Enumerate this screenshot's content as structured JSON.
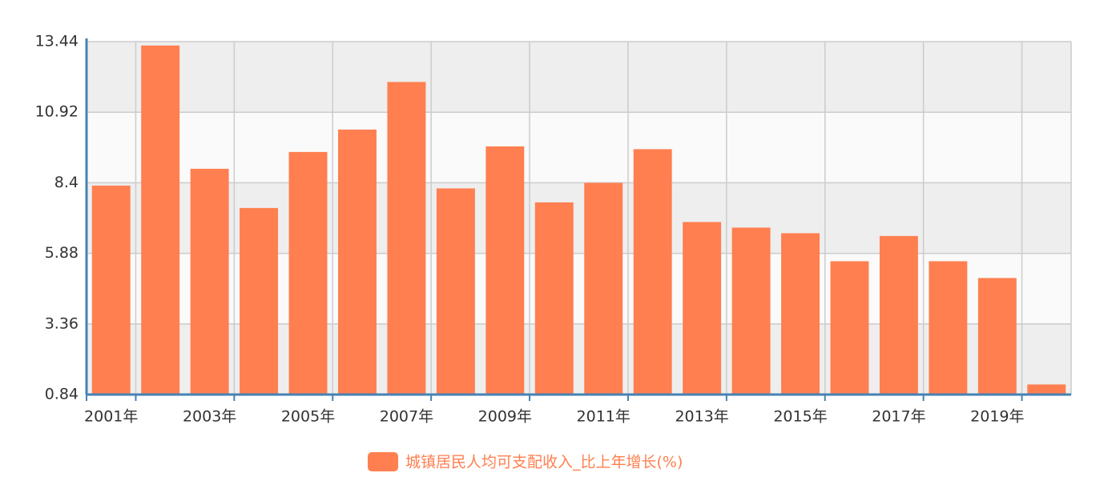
{
  "chart_data": {
    "type": "bar",
    "categories": [
      "2001年",
      null,
      "2003年",
      null,
      "2005年",
      null,
      "2007年",
      null,
      "2009年",
      null,
      "2011年",
      null,
      "2013年",
      null,
      "2015年",
      null,
      "2017年",
      null,
      "2019年",
      null
    ],
    "series": [
      {
        "name": "城镇居民人均可支配收入_比上年增长(%)",
        "color": "#ff7f50",
        "values": [
          8.3,
          13.3,
          8.9,
          7.5,
          9.5,
          10.3,
          12.0,
          8.2,
          9.7,
          7.7,
          8.4,
          9.6,
          7.0,
          6.8,
          6.6,
          5.6,
          6.5,
          5.6,
          5.0,
          1.2
        ]
      }
    ],
    "ylim": [
      0.84,
      13.44
    ],
    "yticks": [
      0.84,
      3.36,
      5.88,
      8.4,
      10.92,
      13.44
    ],
    "grid": true
  }
}
